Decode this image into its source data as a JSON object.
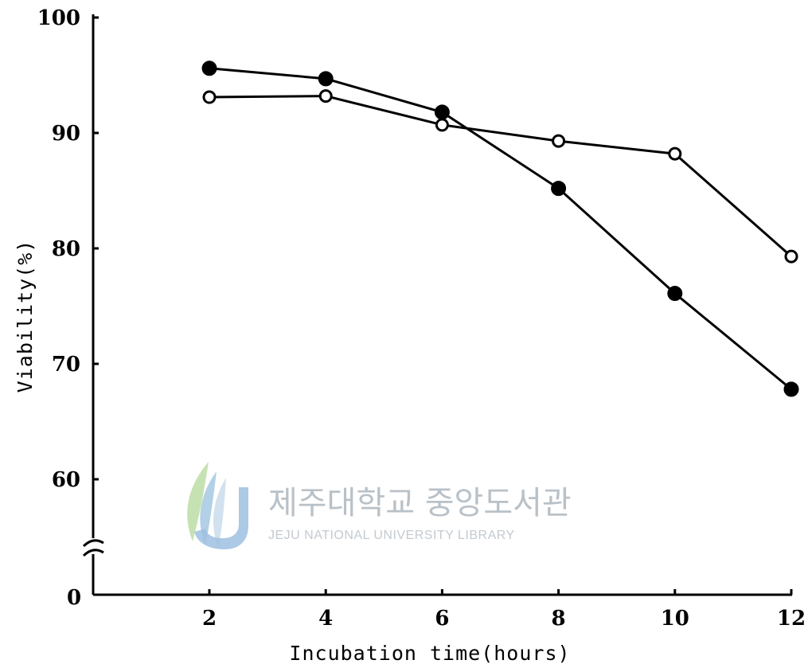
{
  "chart_data": {
    "type": "line",
    "title": "",
    "xlabel": "Incubation time(hours)",
    "ylabel": "Viability(%)",
    "x_ticks": [
      "2",
      "4",
      "6",
      "8",
      "10",
      "12"
    ],
    "y_ticks": [
      "60",
      "70",
      "80",
      "90",
      "100"
    ],
    "origin_label": "0",
    "ylim": [
      55,
      100
    ],
    "axis_break": true,
    "grid": false,
    "legend": "none",
    "series": [
      {
        "marker": "filled-circle",
        "points": [
          [
            2,
            95.6
          ],
          [
            4,
            94.7
          ],
          [
            6,
            91.8
          ],
          [
            8,
            85.2
          ],
          [
            10,
            76.1
          ],
          [
            12,
            67.8
          ]
        ]
      },
      {
        "marker": "open-circle",
        "points": [
          [
            2,
            93.1
          ],
          [
            4,
            93.2
          ],
          [
            6,
            90.7
          ],
          [
            8,
            89.3
          ],
          [
            10,
            88.2
          ],
          [
            12,
            79.3
          ]
        ]
      }
    ]
  },
  "watermark": {
    "korean": "제주대학교 중앙도서관",
    "english": "JEJU NATIONAL UNIVERSITY LIBRARY"
  },
  "colors": {
    "ink": "#000000",
    "watermark": "#b9c1c8"
  }
}
